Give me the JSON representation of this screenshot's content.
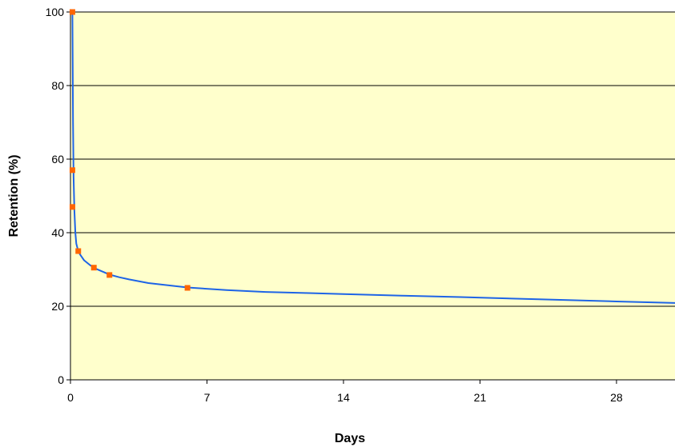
{
  "chart_data": {
    "type": "line",
    "title": "",
    "xlabel": "Days",
    "ylabel": "Retention (%)",
    "xlim": [
      0,
      31
    ],
    "ylim": [
      0,
      100
    ],
    "x_ticks": [
      0,
      7,
      14,
      21,
      28
    ],
    "y_ticks": [
      0,
      20,
      40,
      60,
      80,
      100
    ],
    "grid": "horizontal",
    "legend": "none",
    "colors": {
      "plot_background": "#FFFFCC",
      "line": "#1E64E6",
      "markers": "#FF6600",
      "gridlines": "#000000"
    },
    "series": [
      {
        "type": "line",
        "x": [
          0.1,
          0.13,
          0.16,
          0.2,
          0.25,
          0.3,
          0.4,
          0.5,
          0.7,
          1.0,
          1.3,
          1.7,
          2.0,
          2.5,
          3.0,
          4.0,
          5.0,
          6.0,
          8.0,
          10.0,
          12.0,
          14.0,
          17.0,
          20.0,
          24.0,
          28.0,
          31.0
        ],
        "y": [
          100,
          70,
          55,
          46,
          40,
          37,
          35,
          34,
          32.5,
          31.2,
          30.2,
          29.3,
          28.6,
          27.9,
          27.3,
          26.3,
          25.7,
          25.1,
          24.4,
          23.9,
          23.6,
          23.3,
          22.9,
          22.5,
          21.9,
          21.3,
          20.9
        ]
      },
      {
        "type": "scatter",
        "x": [
          0.1,
          0.1,
          0.1,
          0.4,
          1.2,
          2.0,
          6.0
        ],
        "y": [
          100,
          57,
          47,
          35,
          30.5,
          28.5,
          25
        ]
      }
    ]
  }
}
